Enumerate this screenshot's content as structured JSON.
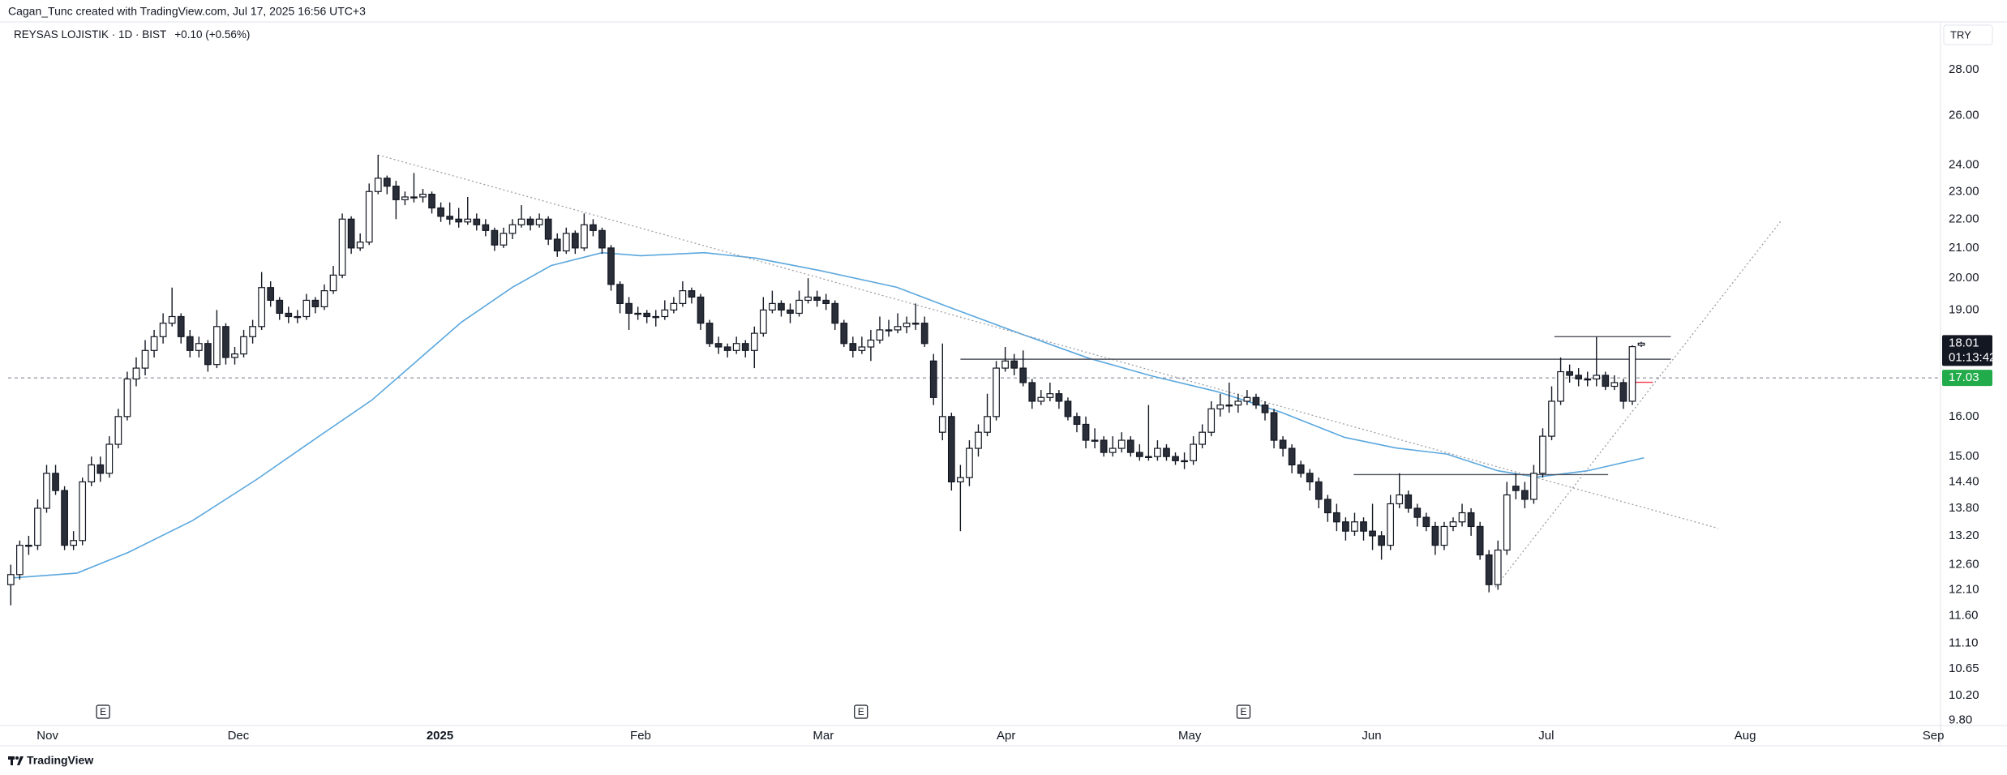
{
  "header": {
    "credit": "Cagan_Tunc created with TradingView.com, Jul 17, 2025 16:56 UTC+3"
  },
  "chart_data": {
    "type": "candlestick",
    "title": "REYSAS LOJISTIK · 1D · BIST",
    "change": "+0.10 (+0.56%)",
    "currency": "TRY",
    "open": [
      12.2,
      12.4,
      13.0,
      13.0,
      13.8,
      14.6,
      14.2,
      13.0,
      13.1,
      14.4,
      14.8,
      14.6,
      15.3,
      16.0,
      17.0,
      17.3,
      17.8,
      18.2,
      18.6,
      18.8,
      18.2,
      17.8,
      18.0,
      17.4,
      18.5,
      17.6,
      17.7,
      18.2,
      18.5,
      19.7,
      19.3,
      18.9,
      18.8,
      18.8,
      19.3,
      19.1,
      19.6,
      20.1,
      22.0,
      21.0,
      21.2,
      23.0,
      23.5,
      23.2,
      22.7,
      22.8,
      22.8,
      22.9,
      22.4,
      22.1,
      22.0,
      21.9,
      22.0,
      21.8,
      21.6,
      21.1,
      21.5,
      21.8,
      22.0,
      21.8,
      22.0,
      21.3,
      20.9,
      21.5,
      21.0,
      21.8,
      21.6,
      21.0,
      19.8,
      19.2,
      18.9,
      18.9,
      18.8,
      18.8,
      19.0,
      19.2,
      19.6,
      19.4,
      18.6,
      18.0,
      17.9,
      17.8,
      18.0,
      17.8,
      18.3,
      19.0,
      19.2,
      19.0,
      18.9,
      19.3,
      19.4,
      19.3,
      19.2,
      18.6,
      18.0,
      17.8,
      17.9,
      18.1,
      18.4,
      18.4,
      18.5,
      18.6,
      18.6,
      17.5,
      15.6,
      16.0,
      14.4,
      14.5,
      15.2,
      15.6,
      16.0,
      17.3,
      17.5,
      17.3,
      16.9,
      16.4,
      16.5,
      16.6,
      16.4,
      16.0,
      15.8,
      15.4,
      15.4,
      15.1,
      15.2,
      15.4,
      15.1,
      15.0,
      15.0,
      15.2,
      15.0,
      14.9,
      14.9,
      15.3,
      15.6,
      16.2,
      16.3,
      16.3,
      16.4,
      16.5,
      16.3,
      16.1,
      15.4,
      15.2,
      14.8,
      14.6,
      14.4,
      14.0,
      13.7,
      13.5,
      13.3,
      13.5,
      13.3,
      13.2,
      13.0,
      13.9,
      14.1,
      13.8,
      13.6,
      13.4,
      13.0,
      13.4,
      13.5,
      13.7,
      13.4,
      12.8,
      12.2,
      12.9,
      14.3,
      14.2,
      14.0,
      14.6,
      15.5,
      16.4,
      17.2,
      17.1,
      17.0,
      17.0,
      17.1,
      16.8,
      16.9,
      16.4,
      17.95
    ],
    "high": [
      12.6,
      13.1,
      13.2,
      14.0,
      14.8,
      14.8,
      14.3,
      13.3,
      14.5,
      15.0,
      15.0,
      15.5,
      16.2,
      17.2,
      17.6,
      18.1,
      18.4,
      18.9,
      19.7,
      18.9,
      18.4,
      18.2,
      18.1,
      19.0,
      18.6,
      17.9,
      18.4,
      18.7,
      20.2,
      19.9,
      19.4,
      19.1,
      19.0,
      19.5,
      19.4,
      19.8,
      20.4,
      22.2,
      22.1,
      21.5,
      23.3,
      24.4,
      23.6,
      23.4,
      23.0,
      23.7,
      23.1,
      23.0,
      22.6,
      22.6,
      22.4,
      22.8,
      22.2,
      22.0,
      21.7,
      21.7,
      22.0,
      22.5,
      22.1,
      22.2,
      22.1,
      21.5,
      21.7,
      21.6,
      22.2,
      22.0,
      21.7,
      21.1,
      19.9,
      19.4,
      19.1,
      19.0,
      19.0,
      19.3,
      19.4,
      19.9,
      19.7,
      19.5,
      18.7,
      18.2,
      18.0,
      18.2,
      18.1,
      18.5,
      19.4,
      19.6,
      19.3,
      19.2,
      19.6,
      20.0,
      19.6,
      19.5,
      19.3,
      18.7,
      18.2,
      18.2,
      18.4,
      18.8,
      18.7,
      18.9,
      18.8,
      19.2,
      18.8,
      17.7,
      18.0,
      16.1,
      14.8,
      15.4,
      15.8,
      16.6,
      17.5,
      17.9,
      17.7,
      17.8,
      17.0,
      16.7,
      16.9,
      16.7,
      16.5,
      16.1,
      16.0,
      15.7,
      15.5,
      15.5,
      15.6,
      15.5,
      15.3,
      16.3,
      15.4,
      15.3,
      15.1,
      15.1,
      15.5,
      15.8,
      16.4,
      16.6,
      16.9,
      16.6,
      16.7,
      16.6,
      16.4,
      16.2,
      15.5,
      15.3,
      14.9,
      14.7,
      14.5,
      14.1,
      13.9,
      13.6,
      13.7,
      13.6,
      13.9,
      13.3,
      14.1,
      14.6,
      14.2,
      13.9,
      13.7,
      13.5,
      13.5,
      13.6,
      13.9,
      13.8,
      13.5,
      12.9,
      13.1,
      14.4,
      14.6,
      14.4,
      14.8,
      15.7,
      16.8,
      17.6,
      17.4,
      17.3,
      17.2,
      18.2,
      17.2,
      17.1,
      17.0,
      17.95,
      18.05
    ],
    "low": [
      11.8,
      12.3,
      12.8,
      12.9,
      13.7,
      14.1,
      12.9,
      12.9,
      13.0,
      14.3,
      14.4,
      14.5,
      15.2,
      15.9,
      16.8,
      17.1,
      17.6,
      18.0,
      18.5,
      18.0,
      17.6,
      17.6,
      17.2,
      17.3,
      17.4,
      17.4,
      17.6,
      18.0,
      18.4,
      19.1,
      18.7,
      18.6,
      18.6,
      18.7,
      18.9,
      19.0,
      19.5,
      20.0,
      20.8,
      20.9,
      21.1,
      22.9,
      22.9,
      22.0,
      22.5,
      22.6,
      22.6,
      22.2,
      21.9,
      21.8,
      21.7,
      21.8,
      21.6,
      21.4,
      20.9,
      21.0,
      21.3,
      21.7,
      21.6,
      21.7,
      21.1,
      20.7,
      20.8,
      20.8,
      20.9,
      21.4,
      20.8,
      19.6,
      18.9,
      18.4,
      18.7,
      18.6,
      18.5,
      18.7,
      18.9,
      19.1,
      19.2,
      18.4,
      17.9,
      17.7,
      17.6,
      17.7,
      17.6,
      17.3,
      18.2,
      18.9,
      18.8,
      18.6,
      18.8,
      19.2,
      19.1,
      19.0,
      18.4,
      17.9,
      17.6,
      17.7,
      17.5,
      18.0,
      18.2,
      18.3,
      18.3,
      18.4,
      17.9,
      16.3,
      15.4,
      14.2,
      13.3,
      14.3,
      15.0,
      15.5,
      15.9,
      17.2,
      17.1,
      16.8,
      16.2,
      16.3,
      16.4,
      16.2,
      15.9,
      15.6,
      15.2,
      15.2,
      15.0,
      15.0,
      15.1,
      15.0,
      14.9,
      14.9,
      14.9,
      14.9,
      14.8,
      14.7,
      14.8,
      15.2,
      15.5,
      16.0,
      16.1,
      16.1,
      16.3,
      16.2,
      15.9,
      15.2,
      15.0,
      14.6,
      14.5,
      14.2,
      13.8,
      13.5,
      13.3,
      13.1,
      13.2,
      13.1,
      12.9,
      12.7,
      12.9,
      13.8,
      13.7,
      13.4,
      13.3,
      12.8,
      12.9,
      13.3,
      13.4,
      13.2,
      12.7,
      12.05,
      12.1,
      12.8,
      14.0,
      13.8,
      13.9,
      14.5,
      15.4,
      16.3,
      16.9,
      16.8,
      16.8,
      16.8,
      16.7,
      16.7,
      16.2,
      16.3,
      17.9
    ],
    "close": [
      12.4,
      13.0,
      13.0,
      13.8,
      14.6,
      14.2,
      13.0,
      13.1,
      14.4,
      14.8,
      14.6,
      15.3,
      16.0,
      17.0,
      17.3,
      17.8,
      18.2,
      18.6,
      18.8,
      18.2,
      17.8,
      18.0,
      17.4,
      18.5,
      17.6,
      17.7,
      18.2,
      18.5,
      19.7,
      19.3,
      18.9,
      18.8,
      18.8,
      19.3,
      19.1,
      19.6,
      20.1,
      22.0,
      21.0,
      21.2,
      23.0,
      23.5,
      23.2,
      22.7,
      22.8,
      22.8,
      22.9,
      22.4,
      22.1,
      22.0,
      21.9,
      22.0,
      21.8,
      21.6,
      21.1,
      21.5,
      21.8,
      22.0,
      21.8,
      22.0,
      21.3,
      20.9,
      21.5,
      21.0,
      21.8,
      21.6,
      21.0,
      19.8,
      19.2,
      18.9,
      18.9,
      18.8,
      18.8,
      19.0,
      19.2,
      19.6,
      19.4,
      18.6,
      18.0,
      17.9,
      17.8,
      18.0,
      17.8,
      18.3,
      19.0,
      19.2,
      19.0,
      18.9,
      19.3,
      19.4,
      19.3,
      19.2,
      18.6,
      18.0,
      17.8,
      17.9,
      18.1,
      18.4,
      18.4,
      18.5,
      18.6,
      18.6,
      18.0,
      16.5,
      16.0,
      14.4,
      14.5,
      15.2,
      15.6,
      16.0,
      17.3,
      17.5,
      17.3,
      16.9,
      16.4,
      16.5,
      16.6,
      16.4,
      16.0,
      15.8,
      15.4,
      15.4,
      15.1,
      15.2,
      15.4,
      15.1,
      15.0,
      15.0,
      15.2,
      15.0,
      14.9,
      14.9,
      15.3,
      15.6,
      16.2,
      16.3,
      16.3,
      16.4,
      16.5,
      16.3,
      16.1,
      15.4,
      15.2,
      14.8,
      14.6,
      14.4,
      14.0,
      13.7,
      13.5,
      13.3,
      13.5,
      13.3,
      13.2,
      13.0,
      13.9,
      14.1,
      13.8,
      13.6,
      13.4,
      13.0,
      13.4,
      13.5,
      13.7,
      13.4,
      12.8,
      12.2,
      12.9,
      14.1,
      14.2,
      14.0,
      14.6,
      15.5,
      16.4,
      17.2,
      17.1,
      17.0,
      17.0,
      17.1,
      16.8,
      16.9,
      16.4,
      17.91,
      18.01
    ],
    "up_color": "#ffffff",
    "down_color": "#2a2e39",
    "ma": {
      "color": "#5aa7de",
      "x": [
        0,
        7.4,
        13.1,
        20.3,
        27.4,
        34.6,
        40.3,
        46,
        50.3,
        56,
        60.3,
        66,
        70.3,
        77.4,
        83.1,
        90.3,
        98.9,
        104.6,
        113.1,
        120.3,
        127.4,
        134.6,
        141.7,
        148.9,
        154.6,
        160.3,
        166,
        170.3,
        176,
        182.3
      ],
      "values": [
        12.33,
        12.43,
        12.85,
        13.53,
        14.45,
        15.53,
        16.43,
        17.65,
        18.63,
        19.71,
        20.41,
        20.84,
        20.74,
        20.84,
        20.66,
        20.25,
        19.71,
        19.1,
        18.25,
        17.58,
        17.08,
        16.66,
        16.12,
        15.47,
        15.21,
        15.06,
        14.66,
        14.51,
        14.66,
        14.97
      ]
    },
    "drawings": [
      {
        "x": [
          41,
          190.6
        ],
        "y": [
          24.4,
          13.36
        ],
        "style": "dotted",
        "color": "#9598a1"
      },
      {
        "x": [
          106,
          185.3
        ],
        "y": [
          17.55,
          17.55
        ],
        "style": "solid",
        "color": "#50535e"
      },
      {
        "x": [
          149.9,
          178.3
        ],
        "y": [
          14.57,
          14.57
        ],
        "style": "solid",
        "color": "#50535e"
      },
      {
        "x": [
          165.7,
          197.7
        ],
        "y": [
          12.15,
          21.98
        ],
        "style": "dotted",
        "color": "#9598a1"
      },
      {
        "x": [
          172.3,
          185.3
        ],
        "y": [
          18.2,
          18.2
        ],
        "style": "solid",
        "color": "#50535e"
      },
      {
        "x": [
          180.9,
          183.3
        ],
        "y": [
          16.91,
          16.91
        ],
        "style": "solid",
        "color": "#f23645"
      }
    ],
    "events": [
      {
        "x": 10.3,
        "label": "E"
      },
      {
        "x": 94.9,
        "label": "E"
      },
      {
        "x": 137.6,
        "label": "E"
      }
    ],
    "last_price": 18.01,
    "countdown": "01:13:42",
    "price_line": 17.03,
    "log_y": true,
    "grid": false,
    "xlim": [
      -0.3,
      215.4
    ],
    "ylim": [
      9.72,
      30.2
    ],
    "xticks": [
      {
        "value": 4.1,
        "label": "Nov"
      },
      {
        "value": 25.4,
        "label": "Dec"
      },
      {
        "value": 47.9,
        "label": "2025"
      },
      {
        "value": 70.3,
        "label": "Feb"
      },
      {
        "value": 90.7,
        "label": "Mar"
      },
      {
        "value": 111.1,
        "label": "Apr"
      },
      {
        "value": 131.6,
        "label": "May"
      },
      {
        "value": 151.9,
        "label": "Jun"
      },
      {
        "value": 171.4,
        "label": "Jul"
      },
      {
        "value": 193.6,
        "label": "Aug"
      },
      {
        "value": 214.6,
        "label": "Sep"
      }
    ],
    "yticks": [
      {
        "value": 9.8,
        "label": "9.80"
      },
      {
        "value": 10.2,
        "label": "10.20"
      },
      {
        "value": 10.65,
        "label": "10.65"
      },
      {
        "value": 11.1,
        "label": "11.10"
      },
      {
        "value": 11.6,
        "label": "11.60"
      },
      {
        "value": 12.1,
        "label": "12.10"
      },
      {
        "value": 12.6,
        "label": "12.60"
      },
      {
        "value": 13.2,
        "label": "13.20"
      },
      {
        "value": 13.8,
        "label": "13.80"
      },
      {
        "value": 14.4,
        "label": "14.40"
      },
      {
        "value": 15,
        "label": "15.00"
      },
      {
        "value": 16,
        "label": "16.00"
      },
      {
        "value": 19,
        "label": "19.00"
      },
      {
        "value": 20,
        "label": "20.00"
      },
      {
        "value": 21,
        "label": "21.00"
      },
      {
        "value": 22,
        "label": "22.00"
      },
      {
        "value": 23,
        "label": "23.00"
      },
      {
        "value": 24,
        "label": "24.00"
      },
      {
        "value": 26,
        "label": "26.00"
      },
      {
        "value": 28,
        "label": "28.00"
      }
    ]
  },
  "footer": {
    "brand": "TradingView"
  }
}
